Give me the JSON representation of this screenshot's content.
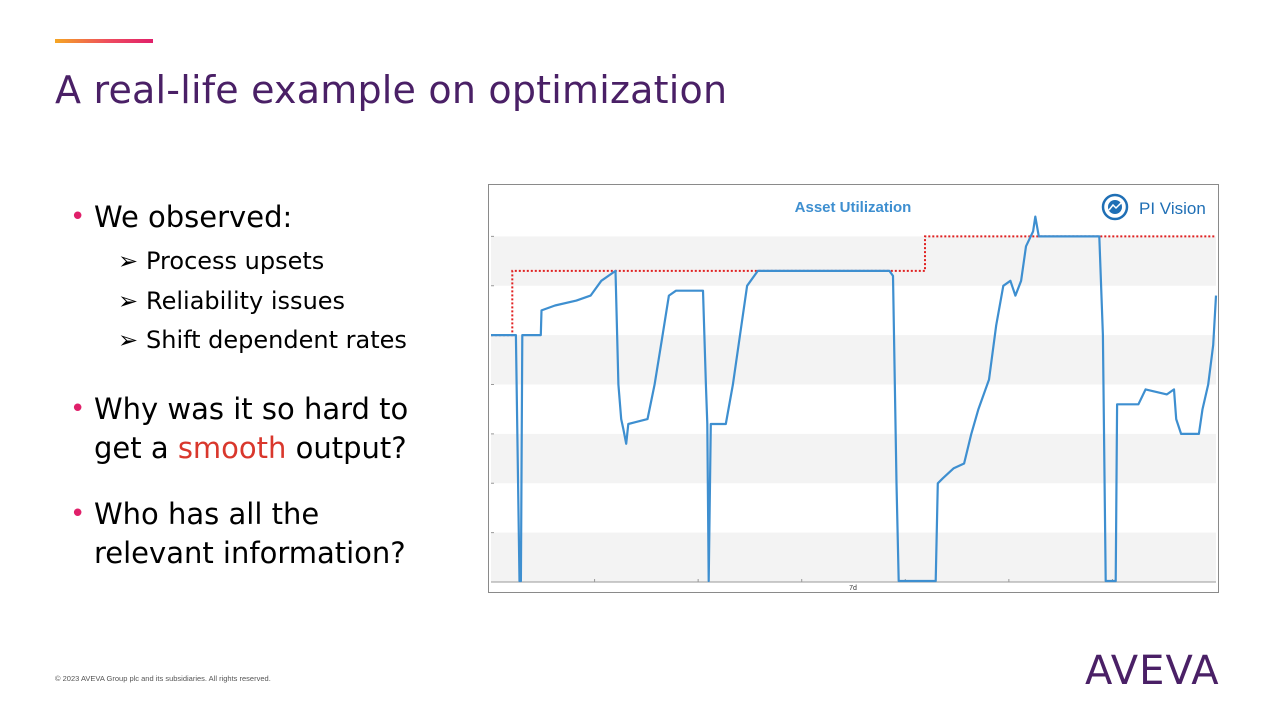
{
  "slide": {
    "title": "A real-life example on optimization",
    "accent_colors": [
      "#f5a623",
      "#ee4b5f",
      "#e0206a"
    ],
    "title_color": "#4a2066"
  },
  "bullets": {
    "b1": "We observed:",
    "b1_sub": [
      "Process upsets",
      "Reliability issues",
      "Shift dependent rates"
    ],
    "b2_line1": "Why was it so hard to",
    "b2_line2_pre": "get a ",
    "b2_line2_red": "smooth",
    "b2_line2_post": " output?",
    "b3_line1": "Who has all the",
    "b3_line2": "relevant information?",
    "bullet_symbol": "•",
    "sub_symbol": "➢",
    "highlight_color": "#d9372c"
  },
  "footer": {
    "copyright": "© 2023 AVEVA Group plc and its subsidiaries. All rights reserved.",
    "logo": "AVEVA"
  },
  "chart_data": {
    "type": "line",
    "title": "Asset Utilization",
    "badge": "PI Vision",
    "xlabel": "7d",
    "ylim": [
      0,
      8
    ],
    "grid": true,
    "colors": {
      "actual": "#3e8fd0",
      "target": "#e02020"
    },
    "series": [
      {
        "name": "",
        "style": "solid",
        "points": [
          [
            0,
            5
          ],
          [
            3.5,
            5
          ],
          [
            4,
            0.02
          ],
          [
            4.2,
            0.02
          ],
          [
            4.4,
            5
          ],
          [
            7,
            5
          ],
          [
            7.1,
            5.5
          ],
          [
            9,
            5.6
          ],
          [
            12,
            5.7
          ],
          [
            14,
            5.8
          ],
          [
            15.5,
            6.1
          ],
          [
            17.5,
            6.3
          ],
          [
            17.9,
            4
          ],
          [
            18.3,
            3.3
          ],
          [
            18.6,
            3.1
          ],
          [
            19,
            2.8
          ],
          [
            19.3,
            3.2
          ],
          [
            22,
            3.3
          ],
          [
            23,
            4
          ],
          [
            24,
            4.9
          ],
          [
            25,
            5.8
          ],
          [
            26,
            5.9
          ],
          [
            28,
            5.9
          ],
          [
            29.8,
            5.9
          ],
          [
            30.2,
            4
          ],
          [
            30.4,
            3.2
          ],
          [
            30.6,
            0.02
          ],
          [
            30.9,
            3.2
          ],
          [
            33,
            3.2
          ],
          [
            34,
            4
          ],
          [
            35,
            5
          ],
          [
            36,
            6
          ],
          [
            37.5,
            6.3
          ],
          [
            45,
            6.3
          ],
          [
            53,
            6.3
          ],
          [
            56,
            6.3
          ],
          [
            56.5,
            6.2
          ],
          [
            57,
            2
          ],
          [
            57.3,
            0.02
          ],
          [
            62.5,
            0.02
          ],
          [
            62.8,
            2
          ],
          [
            63.5,
            2.1
          ],
          [
            65,
            2.3
          ],
          [
            66.5,
            2.4
          ],
          [
            67.5,
            3
          ],
          [
            68.5,
            3.5
          ],
          [
            70,
            4.1
          ],
          [
            71,
            5.2
          ],
          [
            72,
            6
          ],
          [
            73,
            6.1
          ],
          [
            73.7,
            5.8
          ],
          [
            74.5,
            6.1
          ],
          [
            75.2,
            6.8
          ],
          [
            76.2,
            7.1
          ],
          [
            76.5,
            7.4
          ],
          [
            77,
            7
          ],
          [
            80,
            7
          ],
          [
            84,
            7
          ],
          [
            85.5,
            7
          ],
          [
            86,
            5
          ],
          [
            86.4,
            0.02
          ],
          [
            87.8,
            0.02
          ],
          [
            88,
            3.6
          ],
          [
            91,
            3.6
          ],
          [
            92,
            3.9
          ],
          [
            95,
            3.8
          ],
          [
            96,
            3.9
          ],
          [
            96.3,
            3.3
          ],
          [
            97,
            3
          ],
          [
            99.5,
            3
          ],
          [
            100,
            3.5
          ],
          [
            100.8,
            4
          ],
          [
            101.5,
            4.8
          ],
          [
            101.9,
            5.8
          ]
        ]
      },
      {
        "name": "",
        "style": "dotted",
        "points": [
          [
            0,
            5
          ],
          [
            3,
            5
          ],
          [
            3,
            6.3
          ],
          [
            61,
            6.3
          ],
          [
            61,
            7
          ],
          [
            101.9,
            7
          ]
        ]
      }
    ]
  }
}
